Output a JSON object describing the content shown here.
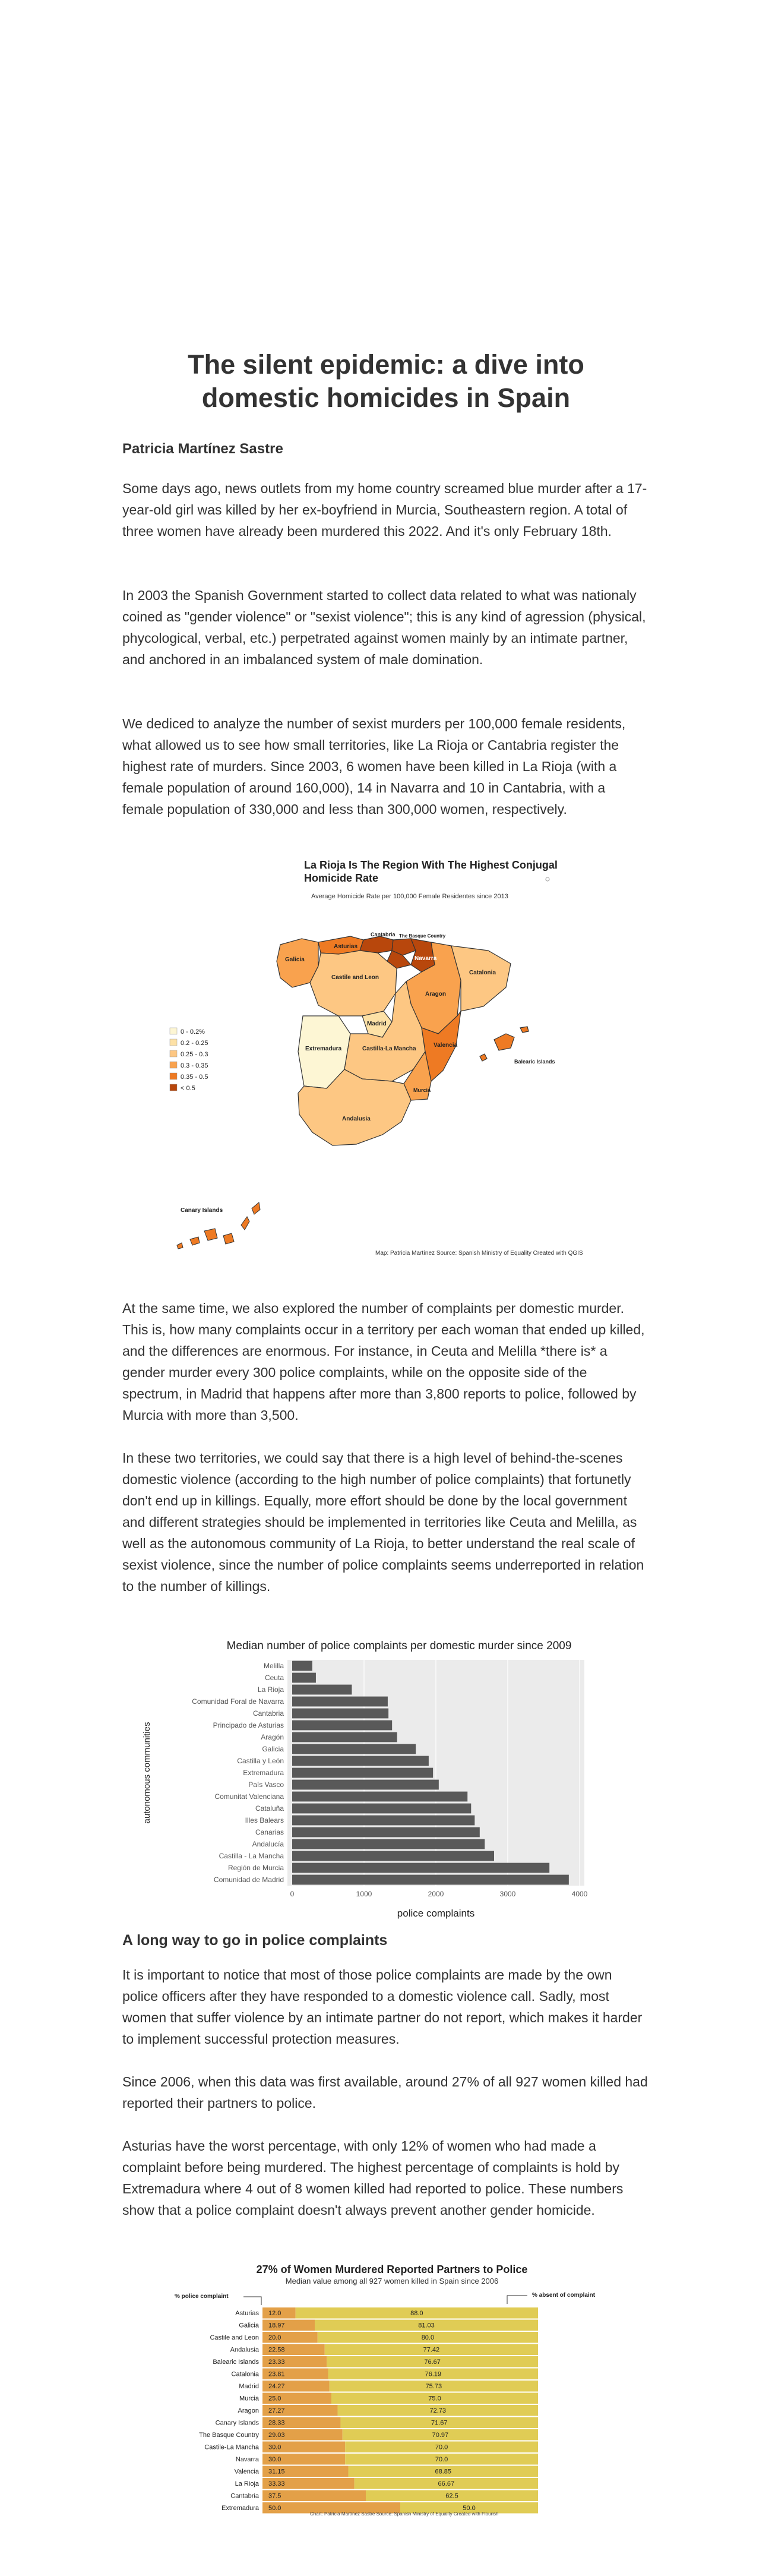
{
  "article": {
    "title_line1": "The silent epidemic: a dive into",
    "title_line2": "domestic homicides in Spain",
    "author": "Patricia Martínez Sastre",
    "p1": "Some days ago, news outlets from my home country screamed blue murder after a 17-year-old girl was killed by her ex-boyfriend in Murcia, Southeastern region. A total of three women have already been murdered this 2022. And it's only February 18th.",
    "p2": "In 2003 the Spanish Government started to collect data related to what was nationaly coined as \"gender violence\" or \"sexist violence\"; this is any kind of agression (physical, phycological, verbal, etc.) perpetrated against women mainly by an intimate partner, and anchored in an imbalanced system of male domination.",
    "p3": "We dediced to analyze the number of sexist murders per 100,000 female residents, what allowed us to see how small territories, like La Rioja or Cantabria register the highest rate of murders. Since 2003, 6 women have been killed in La Rioja (with a female population of around 160,000), 14 in Navarra and 10 in Cantabria, with a female population of 330,000 and less than 300,000 women, respectively.",
    "p4": "At the same time, we also explored the number of complaints per domestic murder. This is, how many complaints occur in a territory per each woman that ended up killed, and the differences are enormous. For instance, in Ceuta and Melilla *there is* a gender murder every 300 police complaints, while on the opposite side of the spectrum, in Madrid that happens after more than 3,800 reports to police, followed by Murcia with more than 3,500.",
    "p5": "In these two territories, we could say that there is a high level of behind-the-scenes domestic violence (according to the high number of police complaints) that fortunetly don't end up in killings. Equally, more effort should be done by the local government and different strategies should be implemented in territories like Ceuta and Melilla, as well as the autonomous community of La Rioja, to better understand the real scale of sexist violence, since the number of police complaints seems underreported in relation to the number of killings.",
    "h2": "A long way to go in police complaints",
    "p6": "It is important to notice that most of those police complaints are made by the own police officers after they have responded to a domestic violence call. Sadly, most women that suffer violence by an intimate partner do not report, which makes it harder to implement successful protection measures.",
    "p7": "Since 2006, when this data was first available, around 27% of all 927 women killed had reported their partners to police.",
    "p8": "Asturias have the worst percentage, with only 12% of women who had made a complaint before being murdered. The highest percentage of complaints is hold by Extremadura where 4 out of 8 women killed had reported to police. These numbers show that a police complaint doesn't always prevent another gender homicide."
  },
  "map": {
    "title_line1": "La Rioja Is The Region With The Highest Conjugal",
    "title_line2": "Homicide Rate",
    "subtitle": "Average Homicide Rate per 100,000 Female Residentes since 2013",
    "legend": [
      {
        "label": "0 - 0.2%",
        "color": "#fdf6d4"
      },
      {
        "label": "0.2 - 0.25",
        "color": "#fde1a6"
      },
      {
        "label": "0.25 - 0.3",
        "color": "#fdc783"
      },
      {
        "label": "0.3 - 0.35",
        "color": "#f9a24e"
      },
      {
        "label": "0.35 - 0.5",
        "color": "#ee7a23"
      },
      {
        "label": "< 0.5",
        "color": "#b8470c"
      }
    ],
    "regions": {
      "galicia": "Galicia",
      "asturias": "Asturias",
      "cantabria": "Cantabria",
      "basque": "The Basque Country",
      "navarra": "Navarra",
      "castile_leon": "Castile and Leon",
      "aragon": "Aragon",
      "catalonia": "Catalonia",
      "madrid": "Madrid",
      "extremadura": "Extremadura",
      "castilla_mancha": "Castilla-La Mancha",
      "valencia": "Valencia",
      "balearic": "Balearic Islands",
      "murcia": "Murcia",
      "andalusia": "Andalusia",
      "canary": "Canary Islands"
    },
    "credit": "Map: Patricia Martínez  Source: Spanish Ministry of Equality  Created with QGIS"
  },
  "complaints_chart": {
    "chart_data": {
      "type": "bar",
      "orientation": "horizontal",
      "title": "Median number of police complaints per domestic murder since 2009",
      "xlabel": "police complaints",
      "ylabel": "autonomous communities",
      "xlim": [
        0,
        4000
      ],
      "xticks": [
        "0",
        "1000",
        "2000",
        "3000",
        "4000"
      ],
      "categories": [
        "Melilla",
        "Ceuta",
        "La Rioja",
        "Comunidad Foral de Navarra",
        "Cantabria",
        "Principado de Asturias",
        "Aragón",
        "Galicia",
        "Castilla y León",
        "Extremadura",
        "País Vasco",
        "Comunitat Valenciana",
        "Cataluña",
        "Illes Balears",
        "Canarias",
        "Andalucía",
        "Castilla - La Mancha",
        "Región de Murcia",
        "Comunidad de Madrid"
      ],
      "values": [
        280,
        330,
        830,
        1330,
        1340,
        1390,
        1460,
        1720,
        1900,
        1960,
        2040,
        2440,
        2490,
        2540,
        2610,
        2680,
        2810,
        3580,
        3850
      ],
      "bar_color": "#595959",
      "panel_color": "#ebebeb"
    }
  },
  "percent_chart": {
    "chart_data": {
      "type": "bar",
      "orientation": "horizontal-stacked",
      "title": "27% of Women Murdered Reported Partners to Police",
      "subtitle": "Median value among all 927 women killed in Spain since 2006",
      "left_label": "% police complaint",
      "right_label": "% absent of complaint",
      "categories": [
        "Asturias",
        "Galicia",
        "Castile and Leon",
        "Andalusia",
        "Balearic Islands",
        "Catalonia",
        "Madrid",
        "Murcia",
        "Aragon",
        "Canary Islands",
        "The Basque Country",
        "Castile-La Mancha",
        "Navarra",
        "Valencia",
        "La Rioja",
        "Cantabria",
        "Extremadura"
      ],
      "series": [
        {
          "name": "% police complaint",
          "color": "#e3a048",
          "values": [
            12.0,
            18.97,
            20.0,
            22.58,
            23.33,
            23.81,
            24.27,
            25.0,
            27.27,
            28.33,
            29.03,
            30.0,
            30.0,
            31.15,
            33.33,
            37.5,
            50.0
          ]
        },
        {
          "name": "% absent of complaint",
          "color": "#e0cc55",
          "values": [
            88.0,
            81.03,
            80.0,
            77.42,
            76.67,
            76.19,
            75.73,
            75.0,
            72.73,
            71.67,
            70.97,
            70.0,
            70.0,
            68.85,
            66.67,
            62.5,
            50.0
          ]
        }
      ],
      "left_labels": [
        "12.0",
        "18.97",
        "20.0",
        "22.58",
        "23.33",
        "23.81",
        "24.27",
        "25.0",
        "27.27",
        "28.33",
        "29.03",
        "30.0",
        "30.0",
        "31.15",
        "33.33",
        "37.5",
        "50.0"
      ],
      "right_labels": [
        "88.0",
        "81.03",
        "80.0",
        "77.42",
        "76.67",
        "76.19",
        "75.73",
        "75.0",
        "72.73",
        "71.67",
        "70.97",
        "70.0",
        "70.0",
        "68.85",
        "66.67",
        "62.5",
        "50.0"
      ],
      "credit": "Chart: Patricia Martínez Sastre  Source: Spanish Ministry of Equality  Created with Flourish"
    }
  }
}
